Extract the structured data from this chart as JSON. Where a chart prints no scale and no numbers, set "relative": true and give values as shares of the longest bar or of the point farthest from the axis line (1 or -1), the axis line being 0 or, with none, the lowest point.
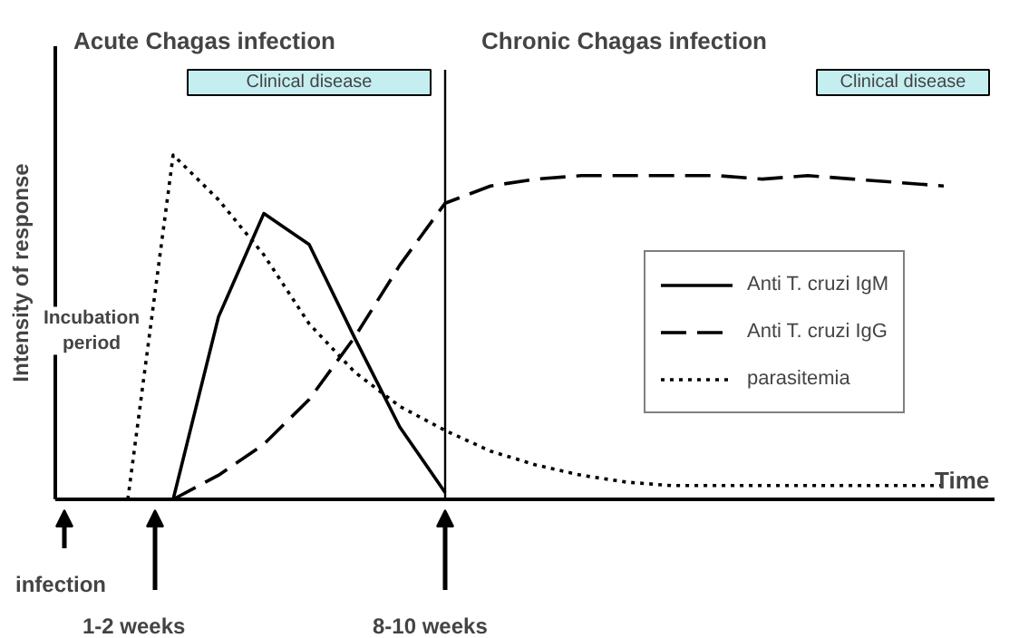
{
  "chart_data": {
    "type": "line",
    "relative": true,
    "xlabel": "Time",
    "ylabel": "Intensity of response",
    "categories": [
      null,
      null,
      null,
      null,
      null,
      null,
      null,
      null,
      null,
      null,
      null,
      null,
      null,
      null,
      null,
      null,
      null,
      null,
      null,
      null,
      null
    ],
    "series": [
      {
        "name": "Anti T. cruzi IgM",
        "color": "#000000",
        "line_style": "solid",
        "values": [
          null,
          null,
          null,
          0,
          0.53,
          0.83,
          0.74,
          0.47,
          0.21,
          0.02,
          null,
          null,
          null,
          null,
          null,
          null,
          null,
          null,
          null,
          null,
          null
        ]
      },
      {
        "name": "Anti T. cruzi IgG",
        "color": "#000000",
        "line_style": "dashed",
        "values": [
          null,
          null,
          null,
          0,
          0.07,
          0.16,
          0.29,
          0.47,
          0.68,
          0.86,
          0.91,
          0.93,
          0.94,
          0.94,
          0.94,
          0.94,
          0.93,
          0.94,
          0.93,
          0.92,
          0.91
        ]
      },
      {
        "name": "parasitemia",
        "color": "#000000",
        "line_style": "dotted",
        "values": [
          null,
          null,
          0,
          1.0,
          0.87,
          0.71,
          0.51,
          0.37,
          0.27,
          0.2,
          0.14,
          0.1,
          0.07,
          0.05,
          0.04,
          0.04,
          0.04,
          0.04,
          0.04,
          0.04,
          0.04
        ]
      }
    ],
    "annotations": [
      "Acute Chagas infection",
      "Chronic Chagas infection",
      "Clinical disease",
      "Clinical disease",
      "Incubation period",
      "infection",
      "1-2 weeks",
      "8-10 weeks"
    ],
    "legend": "right",
    "grid": false
  }
}
